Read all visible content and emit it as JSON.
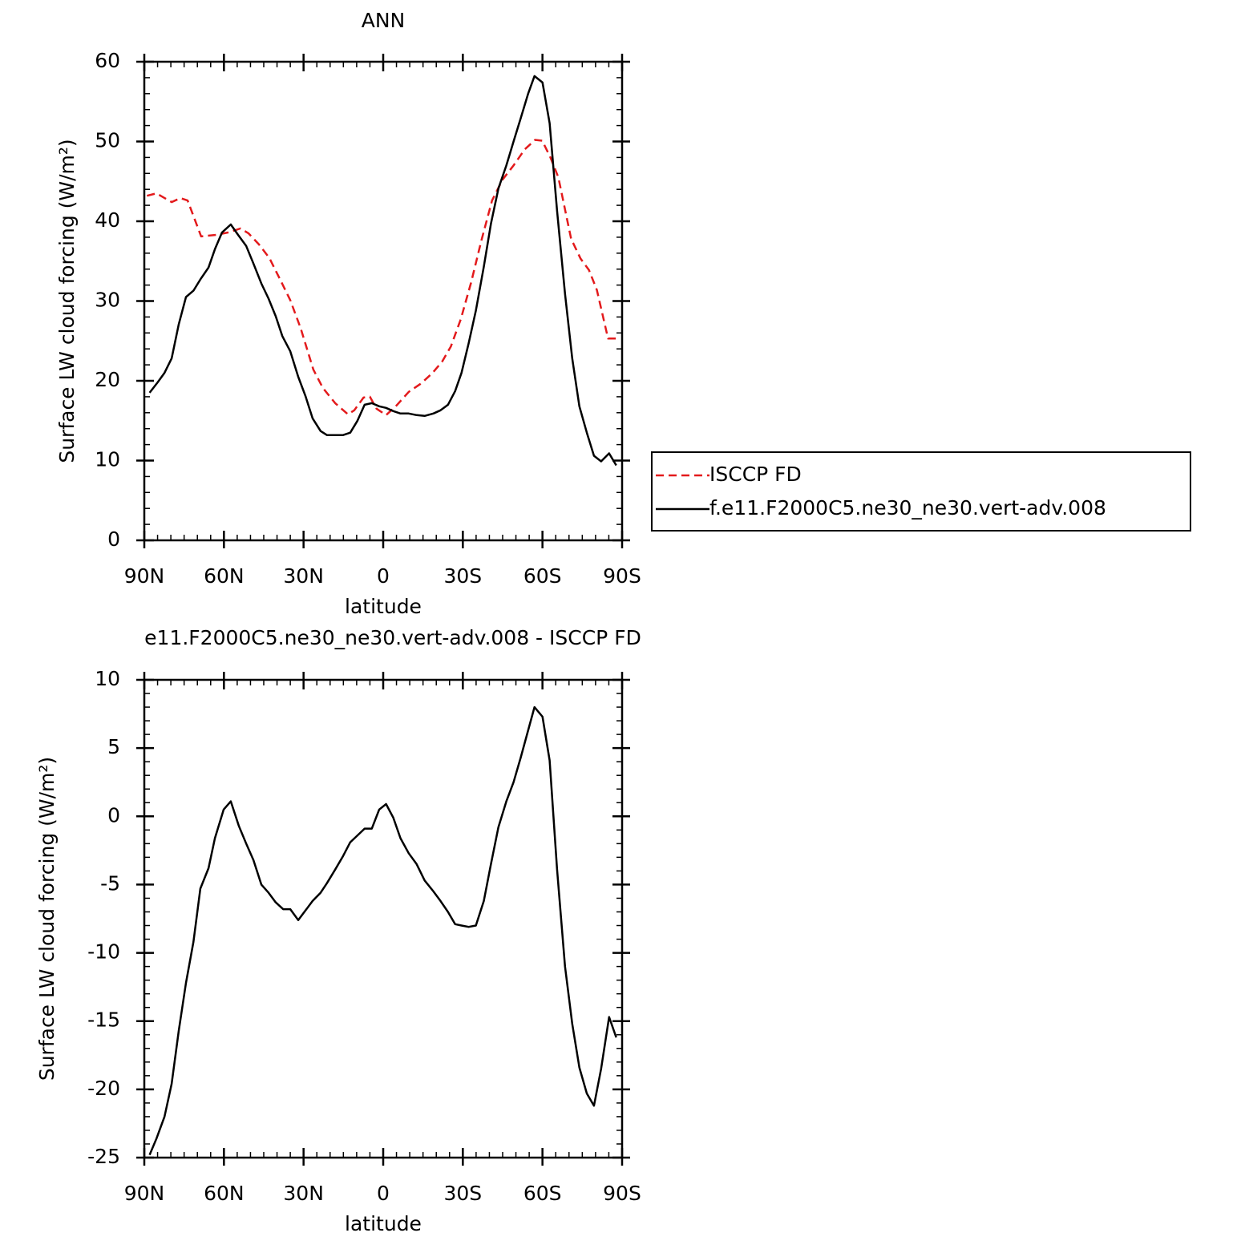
{
  "chart_data": [
    {
      "type": "line",
      "title": "ANN",
      "xlabel": "latitude",
      "ylabel": "Surface LW cloud forcing (W/m²)",
      "xlim": [
        90,
        -90
      ],
      "xticks": [
        {
          "value": 90,
          "label": "90N"
        },
        {
          "value": 60,
          "label": "60N"
        },
        {
          "value": 30,
          "label": "30N"
        },
        0,
        {
          "value": -30,
          "label": "30S"
        },
        {
          "value": -60,
          "label": "60S"
        },
        {
          "value": -90,
          "label": "90S"
        }
      ],
      "xminor": [
        85,
        80,
        75,
        70,
        65,
        55,
        50,
        45,
        40,
        35,
        25,
        20,
        15,
        10,
        5,
        -5,
        -10,
        -15,
        -20,
        -25,
        -35,
        -40,
        -45,
        -50,
        -55,
        -65,
        -70,
        -75,
        -80,
        -85
      ],
      "ylim": [
        0,
        60
      ],
      "yticks": [
        0,
        10,
        20,
        30,
        40,
        50,
        60
      ],
      "yminor": [
        2,
        4,
        6,
        8,
        12,
        14,
        16,
        18,
        22,
        24,
        26,
        28,
        32,
        34,
        36,
        38,
        42,
        44,
        46,
        48,
        52,
        54,
        56,
        58
      ],
      "legend": "right",
      "series": [
        {
          "name": "ISCCP FD",
          "color": "#e31a1c",
          "dash": true,
          "x": [
            89,
            85.4,
            79.7,
            76.4,
            73.7,
            68.6,
            62.8,
            58.3,
            53.8,
            50.8,
            46.8,
            42.9,
            39,
            35,
            31.1,
            26.3,
            22.7,
            18.1,
            13.3,
            10.9,
            7.4,
            5,
            2.5,
            -1.1,
            -5,
            -9.6,
            -14.4,
            -18.6,
            -22.2,
            -25.5,
            -29.2,
            -33.1,
            -37,
            -41,
            -44.9,
            -49.1,
            -53.3,
            -57.2,
            -59.9,
            -63,
            -66,
            -70.8,
            -74.4,
            -77.5,
            -80.5,
            -84.7,
            -87.8
          ],
          "values": [
            43.2,
            43.5,
            42.4,
            42.9,
            42.6,
            38.1,
            38.3,
            38.6,
            39.1,
            38.5,
            37.1,
            35.4,
            32.8,
            30.1,
            26.6,
            21.4,
            19.1,
            17.2,
            15.8,
            16.3,
            17.9,
            18,
            16.5,
            15.7,
            16.9,
            18.6,
            19.7,
            21,
            22.4,
            24.3,
            27.7,
            32.3,
            37.6,
            42.6,
            45.2,
            47,
            49,
            50.2,
            50.1,
            48,
            45.5,
            37.8,
            35.3,
            33.9,
            31.4,
            25.3,
            25.3
          ]
        },
        {
          "name": "f.e11.F2000C5.ne30_ne30.vert-adv.008",
          "color": "#000000",
          "dash": false,
          "x": [
            88,
            85,
            82.4,
            79.7,
            77,
            74.3,
            71.5,
            68.9,
            65.8,
            63.4,
            60.7,
            57.4,
            54.7,
            51.6,
            48.9,
            45.9,
            43.2,
            40.5,
            38,
            35,
            32,
            29.3,
            26.6,
            23.6,
            21.2,
            18.1,
            15.1,
            12.4,
            9.7,
            7,
            4.3,
            1.5,
            -1.1,
            -3.8,
            -6.5,
            -9.6,
            -12.6,
            -15.6,
            -18.9,
            -21.6,
            -24.4,
            -27.1,
            -29.5,
            -32.2,
            -34.9,
            -37.9,
            -40.6,
            -43.4,
            -46.4,
            -49.1,
            -51.8,
            -54.6,
            -57,
            -60,
            -62.7,
            -65.5,
            -68.5,
            -71.2,
            -73.9,
            -76.7,
            -79.4,
            -82.1,
            -85.1,
            -87.8
          ],
          "values": [
            18.5,
            19.8,
            21,
            22.8,
            27.1,
            30.5,
            31.3,
            32.7,
            34.2,
            36.5,
            38.6,
            39.6,
            38.3,
            36.9,
            34.7,
            32.2,
            30.3,
            28.1,
            25.6,
            23.7,
            20.5,
            18.1,
            15.3,
            13.7,
            13.2,
            13.2,
            13.2,
            13.5,
            15,
            17,
            17.2,
            16.8,
            16.6,
            16.2,
            15.9,
            15.9,
            15.7,
            15.6,
            15.9,
            16.3,
            17,
            18.7,
            21,
            24.7,
            28.8,
            34.3,
            39.7,
            44.1,
            47,
            50,
            52.9,
            56,
            58.2,
            57.4,
            52.3,
            41.3,
            30.9,
            22.8,
            16.8,
            13.5,
            10.6,
            9.9,
            10.9,
            9.4
          ]
        }
      ]
    },
    {
      "type": "line",
      "title": "e11.F2000C5.ne30_ne30.vert-adv.008 - ISCCP FD",
      "xlabel": "latitude",
      "ylabel": "Surface LW cloud forcing (W/m²)",
      "xlim": [
        90,
        -90
      ],
      "xticks": [
        {
          "value": 90,
          "label": "90N"
        },
        {
          "value": 60,
          "label": "60N"
        },
        {
          "value": 30,
          "label": "30N"
        },
        0,
        {
          "value": -30,
          "label": "30S"
        },
        {
          "value": -60,
          "label": "60S"
        },
        {
          "value": -90,
          "label": "90S"
        }
      ],
      "xminor": [
        85,
        80,
        75,
        70,
        65,
        55,
        50,
        45,
        40,
        35,
        25,
        20,
        15,
        10,
        5,
        -5,
        -10,
        -15,
        -20,
        -25,
        -35,
        -40,
        -45,
        -50,
        -55,
        -65,
        -70,
        -75,
        -80,
        -85
      ],
      "ylim": [
        -25,
        10
      ],
      "yticks": [
        -25,
        -20,
        -15,
        -10,
        -5,
        0,
        5,
        10
      ],
      "yminor": [
        -24,
        -23,
        -22,
        -21,
        -19,
        -18,
        -17,
        -16,
        -14,
        -13,
        -12,
        -11,
        -9,
        -8,
        -7,
        -6,
        -4,
        -3,
        -2,
        -1,
        1,
        2,
        3,
        4,
        6,
        7,
        8,
        9
      ],
      "series": [
        {
          "color": "#000000",
          "dash": false,
          "x": [
            88,
            85.4,
            82.4,
            79.7,
            77,
            74.3,
            71.5,
            68.9,
            65.8,
            63.4,
            60.1,
            57.4,
            54.4,
            51.6,
            48.9,
            45.9,
            43.2,
            40.5,
            37.7,
            35,
            32,
            29.3,
            26.6,
            23.6,
            21.2,
            18.1,
            15.1,
            12.4,
            9.7,
            7,
            4.3,
            1.5,
            -1.1,
            -3.8,
            -6.5,
            -9.6,
            -12.6,
            -15.6,
            -18.9,
            -21.6,
            -24.4,
            -27.1,
            -29.5,
            -32.2,
            -34.9,
            -37.9,
            -40.6,
            -43.4,
            -46.4,
            -49.1,
            -51.8,
            -54.6,
            -57,
            -60,
            -62.7,
            -65.5,
            -68.5,
            -71.2,
            -73.9,
            -76.7,
            -79.4,
            -82.1,
            -85.1,
            -87.8
          ],
          "values": [
            -24.8,
            -23.6,
            -22,
            -19.6,
            -15.7,
            -12.2,
            -9.2,
            -5.3,
            -3.8,
            -1.6,
            0.5,
            1.1,
            -0.7,
            -2,
            -3.2,
            -5,
            -5.6,
            -6.3,
            -6.8,
            -6.8,
            -7.6,
            -6.9,
            -6.2,
            -5.6,
            -4.9,
            -3.9,
            -2.9,
            -1.9,
            -1.4,
            -0.9,
            -0.9,
            0.5,
            0.9,
            -0.1,
            -1.6,
            -2.7,
            -3.5,
            -4.7,
            -5.5,
            -6.2,
            -7,
            -7.9,
            -8,
            -8.1,
            -8,
            -6.2,
            -3.5,
            -0.8,
            1.1,
            2.5,
            4.3,
            6.3,
            8,
            7.3,
            4.1,
            -3.9,
            -11,
            -15.2,
            -18.4,
            -20.3,
            -21.2,
            -18.5,
            -14.7,
            -16.2
          ]
        }
      ]
    }
  ]
}
